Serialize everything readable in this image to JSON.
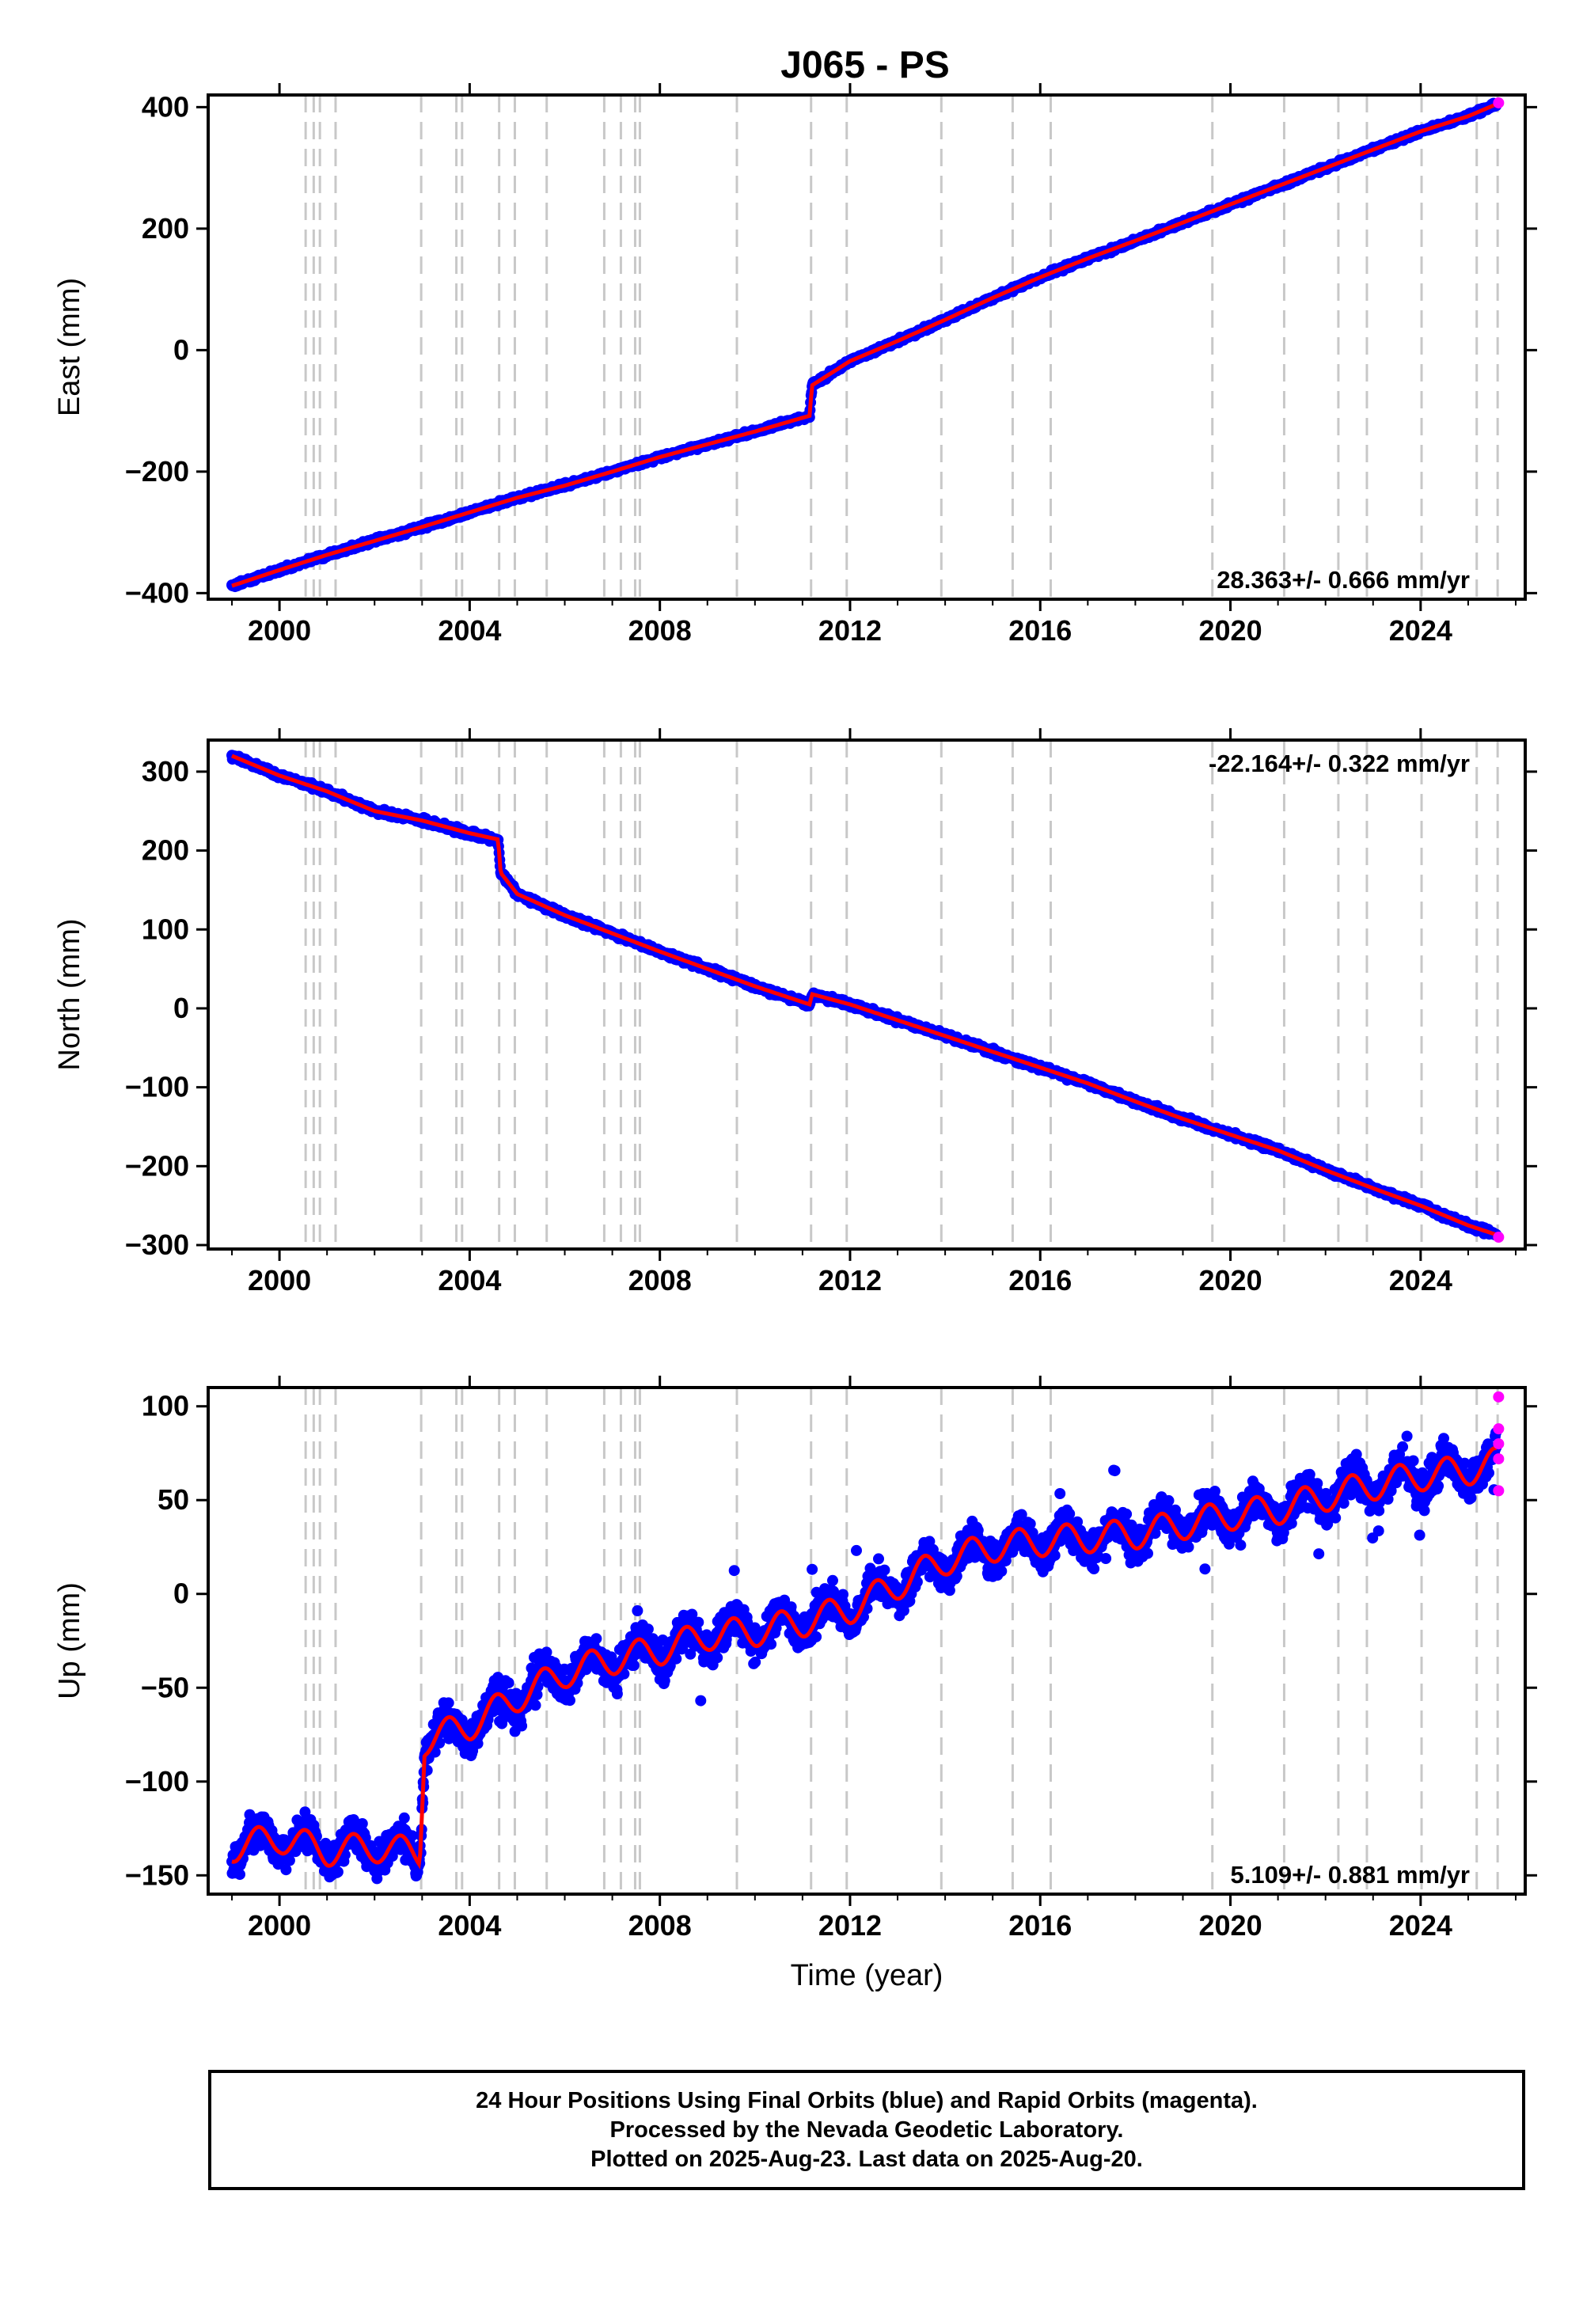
{
  "title": "J065 - PS",
  "colors": {
    "final": "#0000ff",
    "rapid": "#ff00ff",
    "model": "#ff0000",
    "event_lines": "#c8c8c8"
  },
  "event_lines": [
    2000.55,
    2000.72,
    2000.85,
    2001.18,
    2002.98,
    2003.72,
    2003.84,
    2004.62,
    2004.95,
    2005.62,
    2006.83,
    2007.18,
    2007.48,
    2007.58,
    2009.62,
    2011.18,
    2011.93,
    2013.92,
    2015.42,
    2016.22,
    2019.62,
    2021.13,
    2022.27,
    2022.87,
    2024.02,
    2025.18,
    2025.62
  ],
  "chart_data": [
    {
      "type": "scatter",
      "panel": "east",
      "ylabel": "East (mm)",
      "xlim": [
        1998.5,
        2026.2
      ],
      "ylim": [
        -410,
        420
      ],
      "xticks": [
        2000,
        2004,
        2008,
        2012,
        2016,
        2020,
        2024
      ],
      "yticks": [
        -400,
        -200,
        0,
        200,
        400
      ],
      "grid": false,
      "rate_label": "28.363+/- 0.666 mm/yr",
      "rate_position": "bottom-right",
      "series": [
        {
          "name": "Final Orbits",
          "color": "#0000ff",
          "x": [
            1999.0,
            2000.0,
            2001.0,
            2002.0,
            2003.0,
            2004.0,
            2005.0,
            2006.0,
            2007.0,
            2008.0,
            2009.0,
            2010.0,
            2011.15,
            2011.2,
            2012.0,
            2013.0,
            2014.0,
            2015.0,
            2016.0,
            2017.0,
            2018.0,
            2019.0,
            2020.0,
            2021.0,
            2022.0,
            2023.0,
            2024.0,
            2025.0,
            2025.6
          ],
          "y": [
            -388,
            -362,
            -337,
            -314,
            -291,
            -267,
            -243,
            -223,
            -200,
            -176,
            -155,
            -134,
            -108,
            -58,
            -18,
            15,
            50,
            86,
            120,
            151,
            180,
            210,
            240,
            270,
            300,
            330,
            360,
            385,
            405
          ]
        },
        {
          "name": "Rapid Orbits",
          "color": "#ff00ff",
          "x": [
            2025.64
          ],
          "y": [
            407
          ]
        }
      ]
    },
    {
      "type": "scatter",
      "panel": "north",
      "ylabel": "North (mm)",
      "xlim": [
        1998.5,
        2026.2
      ],
      "ylim": [
        -305,
        340
      ],
      "xticks": [
        2000,
        2004,
        2008,
        2012,
        2016,
        2020,
        2024
      ],
      "yticks": [
        -300,
        -200,
        -100,
        0,
        100,
        200,
        300
      ],
      "grid": false,
      "rate_label": "-22.164+/- 0.322 mm/yr",
      "rate_position": "top-right",
      "series": [
        {
          "name": "Final Orbits",
          "color": "#0000ff",
          "x": [
            1999.0,
            2000.0,
            2001.0,
            2002.0,
            2003.0,
            2004.0,
            2004.6,
            2004.65,
            2005.0,
            2006.0,
            2007.0,
            2008.0,
            2009.0,
            2010.0,
            2011.15,
            2011.2,
            2012.0,
            2013.0,
            2014.0,
            2015.0,
            2016.0,
            2017.0,
            2018.0,
            2019.0,
            2020.0,
            2021.0,
            2022.0,
            2023.0,
            2024.0,
            2025.0,
            2025.6
          ],
          "y": [
            320,
            295,
            275,
            250,
            238,
            222,
            214,
            172,
            145,
            118,
            95,
            72,
            50,
            28,
            5,
            18,
            5,
            -15,
            -35,
            -55,
            -75,
            -95,
            -118,
            -140,
            -160,
            -180,
            -205,
            -228,
            -250,
            -275,
            -287
          ]
        },
        {
          "name": "Rapid Orbits",
          "color": "#ff00ff",
          "x": [
            2025.64
          ],
          "y": [
            -290
          ]
        }
      ]
    },
    {
      "type": "scatter",
      "panel": "up",
      "ylabel": "Up (mm)",
      "xlabel": "Time (year)",
      "xlim": [
        1998.5,
        2026.2
      ],
      "ylim": [
        -160,
        110
      ],
      "xticks": [
        2000,
        2004,
        2008,
        2012,
        2016,
        2020,
        2024
      ],
      "yticks": [
        -150,
        -100,
        -50,
        0,
        50,
        100
      ],
      "grid": false,
      "rate_label": "5.109+/- 0.881 mm/yr",
      "rate_position": "bottom-right",
      "series": [
        {
          "name": "Final Orbits",
          "color": "#0000ff",
          "x": [
            1999.0,
            2000.0,
            2001.0,
            2002.0,
            2002.95,
            2003.05,
            2004.0,
            2005.0,
            2006.0,
            2007.0,
            2008.0,
            2009.0,
            2010.0,
            2011.0,
            2012.0,
            2013.0,
            2014.0,
            2015.0,
            2016.0,
            2017.0,
            2018.0,
            2019.0,
            2020.0,
            2021.0,
            2022.0,
            2023.0,
            2024.0,
            2025.0,
            2025.6
          ],
          "y": [
            -135,
            -130,
            -137,
            -135,
            -138,
            -78,
            -70,
            -55,
            -42,
            -35,
            -30,
            -22,
            -20,
            -15,
            -8,
            5,
            18,
            25,
            28,
            30,
            32,
            37,
            42,
            45,
            52,
            58,
            63,
            66,
            70
          ]
        },
        {
          "name": "Rapid Orbits",
          "color": "#ff00ff",
          "x": [
            2025.64,
            2025.64,
            2025.64,
            2025.64,
            2025.64
          ],
          "y": [
            105,
            88,
            80,
            72,
            55
          ]
        }
      ]
    }
  ],
  "footer": {
    "line1": "24 Hour Positions Using Final Orbits (blue) and Rapid Orbits (magenta).",
    "line2": "Processed by the Nevada Geodetic Laboratory.",
    "line3": "Plotted on 2025-Aug-23. Last data on 2025-Aug-20."
  }
}
